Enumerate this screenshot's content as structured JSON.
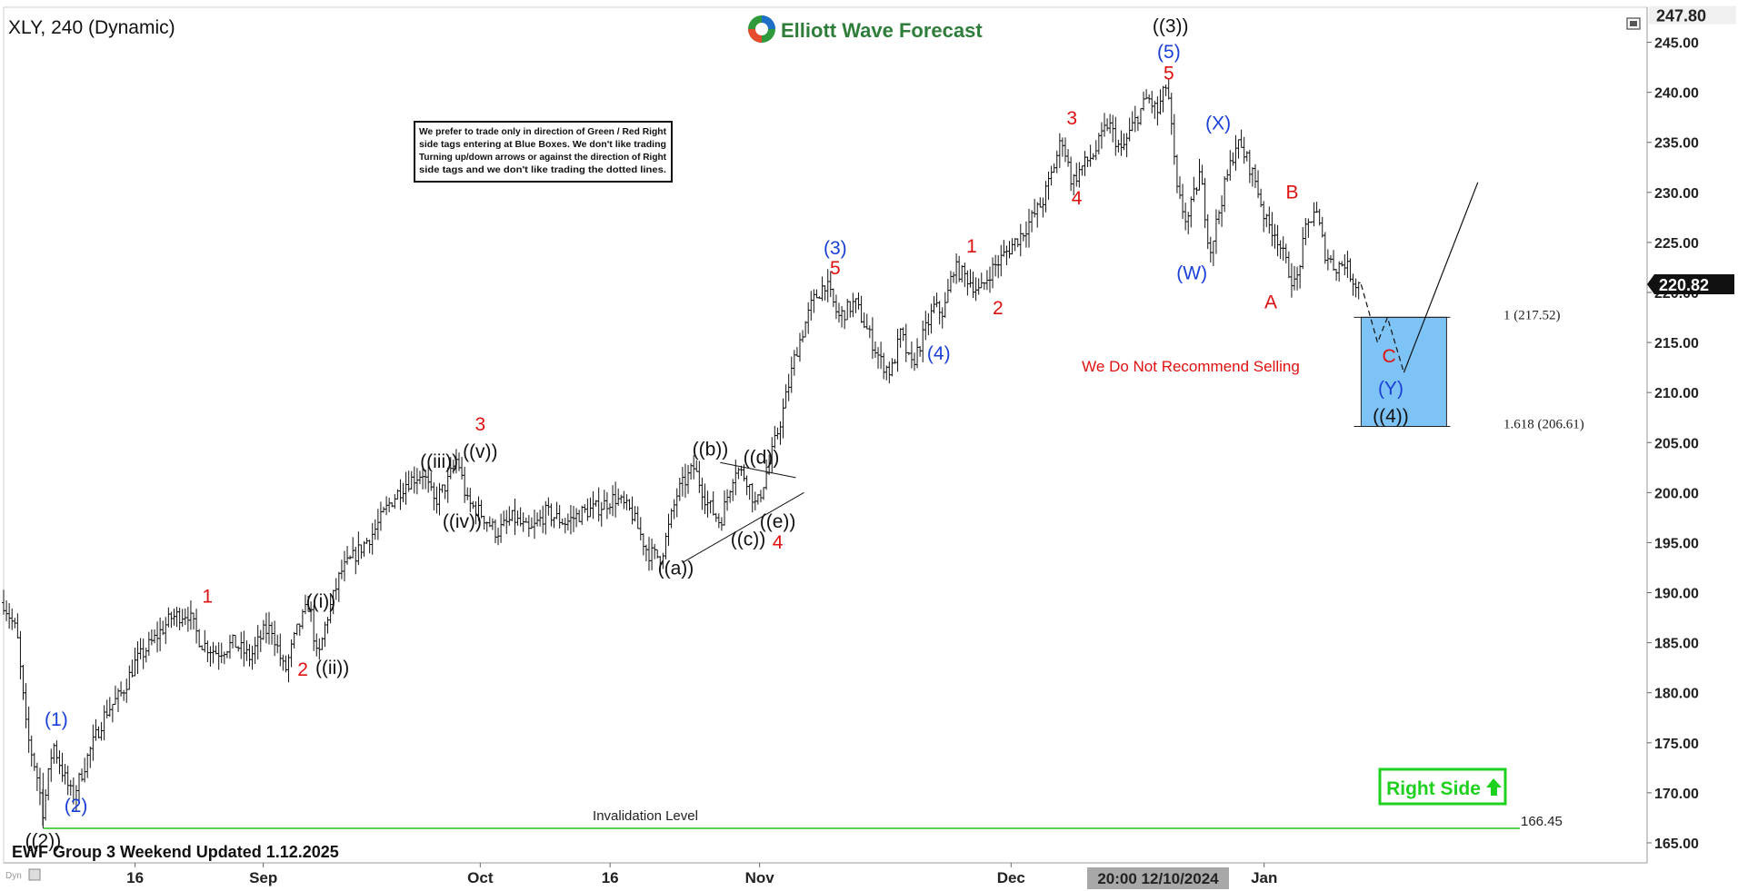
{
  "header": {
    "symbol": "XLY, 240 (Dynamic)",
    "brand": "Elliott Wave Forecast"
  },
  "notice_lines": [
    "We prefer to trade only in direction of Green / Red Right",
    "side tags entering at Blue Boxes. We don't like trading",
    "Turning up/down arrows or against the direction of Right",
    "side tags and we don't like trading the dotted lines."
  ],
  "footer": {
    "update_text": "EWF Group 3 Weekend Updated 1.12.2025",
    "crosshair_time": "20:00 12/10/2024",
    "dyn_tag": "Dyn"
  },
  "right_side_tag": "Right Side",
  "invalidation": {
    "label": "Invalidation Level",
    "value": "166.45"
  },
  "no_sell_text": "We Do Not Recommend Selling",
  "fib_levels": [
    {
      "label": "1 (217.52)",
      "value": 217.52
    },
    {
      "label": "1.618 (206.61)",
      "value": 206.61
    }
  ],
  "colors": {
    "up_wave": "#e01010",
    "blue_wave": "#1a3fd6",
    "black_wave": "#111111",
    "blue_box": "#7ec3f5",
    "invalidation_line": "#22c422",
    "right_side_tag": "#1fd11f"
  },
  "chart_data": {
    "type": "bar",
    "subtype": "ohlc-price",
    "symbol": "XLY",
    "timeframe": "240",
    "y_range": [
      163,
      248.5
    ],
    "y_ticks": [
      165,
      170,
      175,
      180,
      185,
      190,
      195,
      200,
      205,
      210,
      215,
      220,
      225,
      230,
      235,
      240,
      245
    ],
    "y_tick_labels": [
      "165.00",
      "170.00",
      "175.00",
      "180.00",
      "185.00",
      "190.00",
      "195.00",
      "200.00",
      "205.00",
      "210.00",
      "215.00",
      "220.00",
      "225.00",
      "230.00",
      "235.00",
      "240.00",
      "245.00"
    ],
    "x_ticks": [
      {
        "label": "16",
        "t": 0.08
      },
      {
        "label": "Sep",
        "t": 0.158
      },
      {
        "label": "Oct",
        "t": 0.29
      },
      {
        "label": "16",
        "t": 0.369
      },
      {
        "label": "Nov",
        "t": 0.46
      },
      {
        "label": "Dec",
        "t": 0.613
      },
      {
        "label": "Jan",
        "t": 0.767
      }
    ],
    "price_labels": [
      {
        "label": "247.80",
        "value": 247.8,
        "style": "top"
      },
      {
        "label": "220.82",
        "value": 220.82,
        "style": "last"
      }
    ],
    "price_path": [
      [
        0.0,
        189
      ],
      [
        0.008,
        186
      ],
      [
        0.014,
        176
      ],
      [
        0.02,
        172
      ],
      [
        0.024,
        168
      ],
      [
        0.03,
        175
      ],
      [
        0.036,
        172
      ],
      [
        0.042,
        169.5
      ],
      [
        0.052,
        174
      ],
      [
        0.062,
        178
      ],
      [
        0.072,
        180
      ],
      [
        0.08,
        183
      ],
      [
        0.09,
        185
      ],
      [
        0.102,
        187.5
      ],
      [
        0.112,
        188
      ],
      [
        0.12,
        185
      ],
      [
        0.13,
        184
      ],
      [
        0.14,
        185
      ],
      [
        0.15,
        183.5
      ],
      [
        0.158,
        186
      ],
      [
        0.163,
        186.5
      ],
      [
        0.171,
        182
      ],
      [
        0.178,
        186
      ],
      [
        0.186,
        189
      ],
      [
        0.191,
        183
      ],
      [
        0.196,
        187
      ],
      [
        0.205,
        192
      ],
      [
        0.215,
        194
      ],
      [
        0.225,
        196
      ],
      [
        0.235,
        199
      ],
      [
        0.245,
        201
      ],
      [
        0.255,
        202
      ],
      [
        0.262,
        199
      ],
      [
        0.27,
        201
      ],
      [
        0.276,
        203.5
      ],
      [
        0.282,
        199
      ],
      [
        0.29,
        198
      ],
      [
        0.3,
        196
      ],
      [
        0.31,
        197.5
      ],
      [
        0.32,
        196
      ],
      [
        0.33,
        198
      ],
      [
        0.342,
        197
      ],
      [
        0.352,
        198
      ],
      [
        0.362,
        198.5
      ],
      [
        0.372,
        199.5
      ],
      [
        0.382,
        198
      ],
      [
        0.392,
        194
      ],
      [
        0.4,
        193.5
      ],
      [
        0.41,
        200
      ],
      [
        0.42,
        202.5
      ],
      [
        0.428,
        199
      ],
      [
        0.436,
        197
      ],
      [
        0.445,
        202.5
      ],
      [
        0.452,
        201.5
      ],
      [
        0.458,
        198.5
      ],
      [
        0.466,
        203
      ],
      [
        0.474,
        208
      ],
      [
        0.482,
        214
      ],
      [
        0.492,
        219
      ],
      [
        0.5,
        221
      ],
      [
        0.508,
        217.5
      ],
      [
        0.518,
        219
      ],
      [
        0.526,
        216
      ],
      [
        0.534,
        213
      ],
      [
        0.54,
        212
      ],
      [
        0.546,
        216
      ],
      [
        0.552,
        212.5
      ],
      [
        0.558,
        215
      ],
      [
        0.566,
        218.5
      ],
      [
        0.572,
        218
      ],
      [
        0.578,
        222.5
      ],
      [
        0.586,
        221.5
      ],
      [
        0.594,
        220
      ],
      [
        0.6,
        222
      ],
      [
        0.61,
        224
      ],
      [
        0.62,
        226
      ],
      [
        0.632,
        229
      ],
      [
        0.638,
        232
      ],
      [
        0.644,
        235.5
      ],
      [
        0.65,
        231
      ],
      [
        0.656,
        232.5
      ],
      [
        0.664,
        234
      ],
      [
        0.672,
        237
      ],
      [
        0.68,
        234
      ],
      [
        0.688,
        237
      ],
      [
        0.696,
        239.5
      ],
      [
        0.702,
        238
      ],
      [
        0.708,
        241
      ],
      [
        0.714,
        230
      ],
      [
        0.72,
        227
      ],
      [
        0.728,
        232
      ],
      [
        0.734,
        224
      ],
      [
        0.742,
        230
      ],
      [
        0.75,
        235
      ],
      [
        0.756,
        233.5
      ],
      [
        0.762,
        231
      ],
      [
        0.768,
        227
      ],
      [
        0.774,
        226
      ],
      [
        0.78,
        223
      ],
      [
        0.786,
        220.5
      ],
      [
        0.792,
        226
      ],
      [
        0.798,
        228.5
      ],
      [
        0.804,
        224
      ],
      [
        0.81,
        222.5
      ],
      [
        0.816,
        223
      ],
      [
        0.822,
        221
      ],
      [
        0.826,
        220.8
      ]
    ],
    "projection": {
      "dashed": [
        [
          0.826,
          220.8
        ],
        [
          0.836,
          215
        ],
        [
          0.842,
          217.5
        ],
        [
          0.852,
          212
        ]
      ],
      "solid": [
        [
          0.852,
          212
        ],
        [
          0.897,
          231
        ]
      ]
    },
    "blue_box": {
      "t0": 0.826,
      "t1": 0.878,
      "high": 217.52,
      "low": 206.61
    },
    "invalidation_value": 166.45,
    "triangle_lines": [
      {
        "from": [
          0.413,
          193
        ],
        "to": [
          0.487,
          200
        ]
      },
      {
        "from": [
          0.436,
          203
        ],
        "to": [
          0.482,
          201.5
        ]
      }
    ],
    "wave_labels": [
      {
        "text": "((2))",
        "t": 0.024,
        "v": 164.6,
        "color": "black"
      },
      {
        "text": "(1)",
        "t": 0.032,
        "v": 176.7,
        "color": "blue"
      },
      {
        "text": "(2)",
        "t": 0.044,
        "v": 168.1,
        "color": "blue"
      },
      {
        "text": "1",
        "t": 0.124,
        "v": 189.0,
        "color": "red"
      },
      {
        "text": "2",
        "t": 0.182,
        "v": 181.7,
        "color": "red"
      },
      {
        "text": "((i))",
        "t": 0.193,
        "v": 188.5,
        "color": "black"
      },
      {
        "text": "((ii))",
        "t": 0.2,
        "v": 181.9,
        "color": "black"
      },
      {
        "text": "((iii))",
        "t": 0.265,
        "v": 202.5,
        "color": "black"
      },
      {
        "text": "((iv))",
        "t": 0.279,
        "v": 196.5,
        "color": "black"
      },
      {
        "text": "((v))",
        "t": 0.29,
        "v": 203.5,
        "color": "black"
      },
      {
        "text": "3",
        "t": 0.29,
        "v": 206.2,
        "color": "red"
      },
      {
        "text": "((a))",
        "t": 0.409,
        "v": 191.8,
        "color": "black"
      },
      {
        "text": "((b))",
        "t": 0.43,
        "v": 203.7,
        "color": "black"
      },
      {
        "text": "((c))",
        "t": 0.453,
        "v": 194.7,
        "color": "black"
      },
      {
        "text": "((d))",
        "t": 0.461,
        "v": 202.9,
        "color": "black"
      },
      {
        "text": "((e))",
        "t": 0.471,
        "v": 196.5,
        "color": "black"
      },
      {
        "text": "4",
        "t": 0.471,
        "v": 194.4,
        "color": "red"
      },
      {
        "text": "(3)",
        "t": 0.506,
        "v": 223.8,
        "color": "blue"
      },
      {
        "text": "5",
        "t": 0.506,
        "v": 221.8,
        "color": "red"
      },
      {
        "text": "(4)",
        "t": 0.569,
        "v": 213.3,
        "color": "blue"
      },
      {
        "text": "1",
        "t": 0.589,
        "v": 224.0,
        "color": "red"
      },
      {
        "text": "2",
        "t": 0.605,
        "v": 217.8,
        "color": "red"
      },
      {
        "text": "3",
        "t": 0.65,
        "v": 236.8,
        "color": "red"
      },
      {
        "text": "4",
        "t": 0.653,
        "v": 228.8,
        "color": "red"
      },
      {
        "text": "((3))",
        "t": 0.71,
        "v": 246.0,
        "color": "black"
      },
      {
        "text": "(5)",
        "t": 0.709,
        "v": 243.4,
        "color": "blue"
      },
      {
        "text": "5",
        "t": 0.709,
        "v": 241.3,
        "color": "red"
      },
      {
        "text": "(W)",
        "t": 0.723,
        "v": 221.3,
        "color": "blue"
      },
      {
        "text": "(X)",
        "t": 0.739,
        "v": 236.3,
        "color": "blue"
      },
      {
        "text": "A",
        "t": 0.771,
        "v": 218.4,
        "color": "red"
      },
      {
        "text": "B",
        "t": 0.784,
        "v": 229.4,
        "color": "red"
      },
      {
        "text": "C",
        "t": 0.843,
        "v": 213.0,
        "color": "red"
      },
      {
        "text": "(Y)",
        "t": 0.844,
        "v": 209.8,
        "color": "blue"
      },
      {
        "text": "((4))",
        "t": 0.844,
        "v": 207.0,
        "color": "black"
      }
    ]
  }
}
